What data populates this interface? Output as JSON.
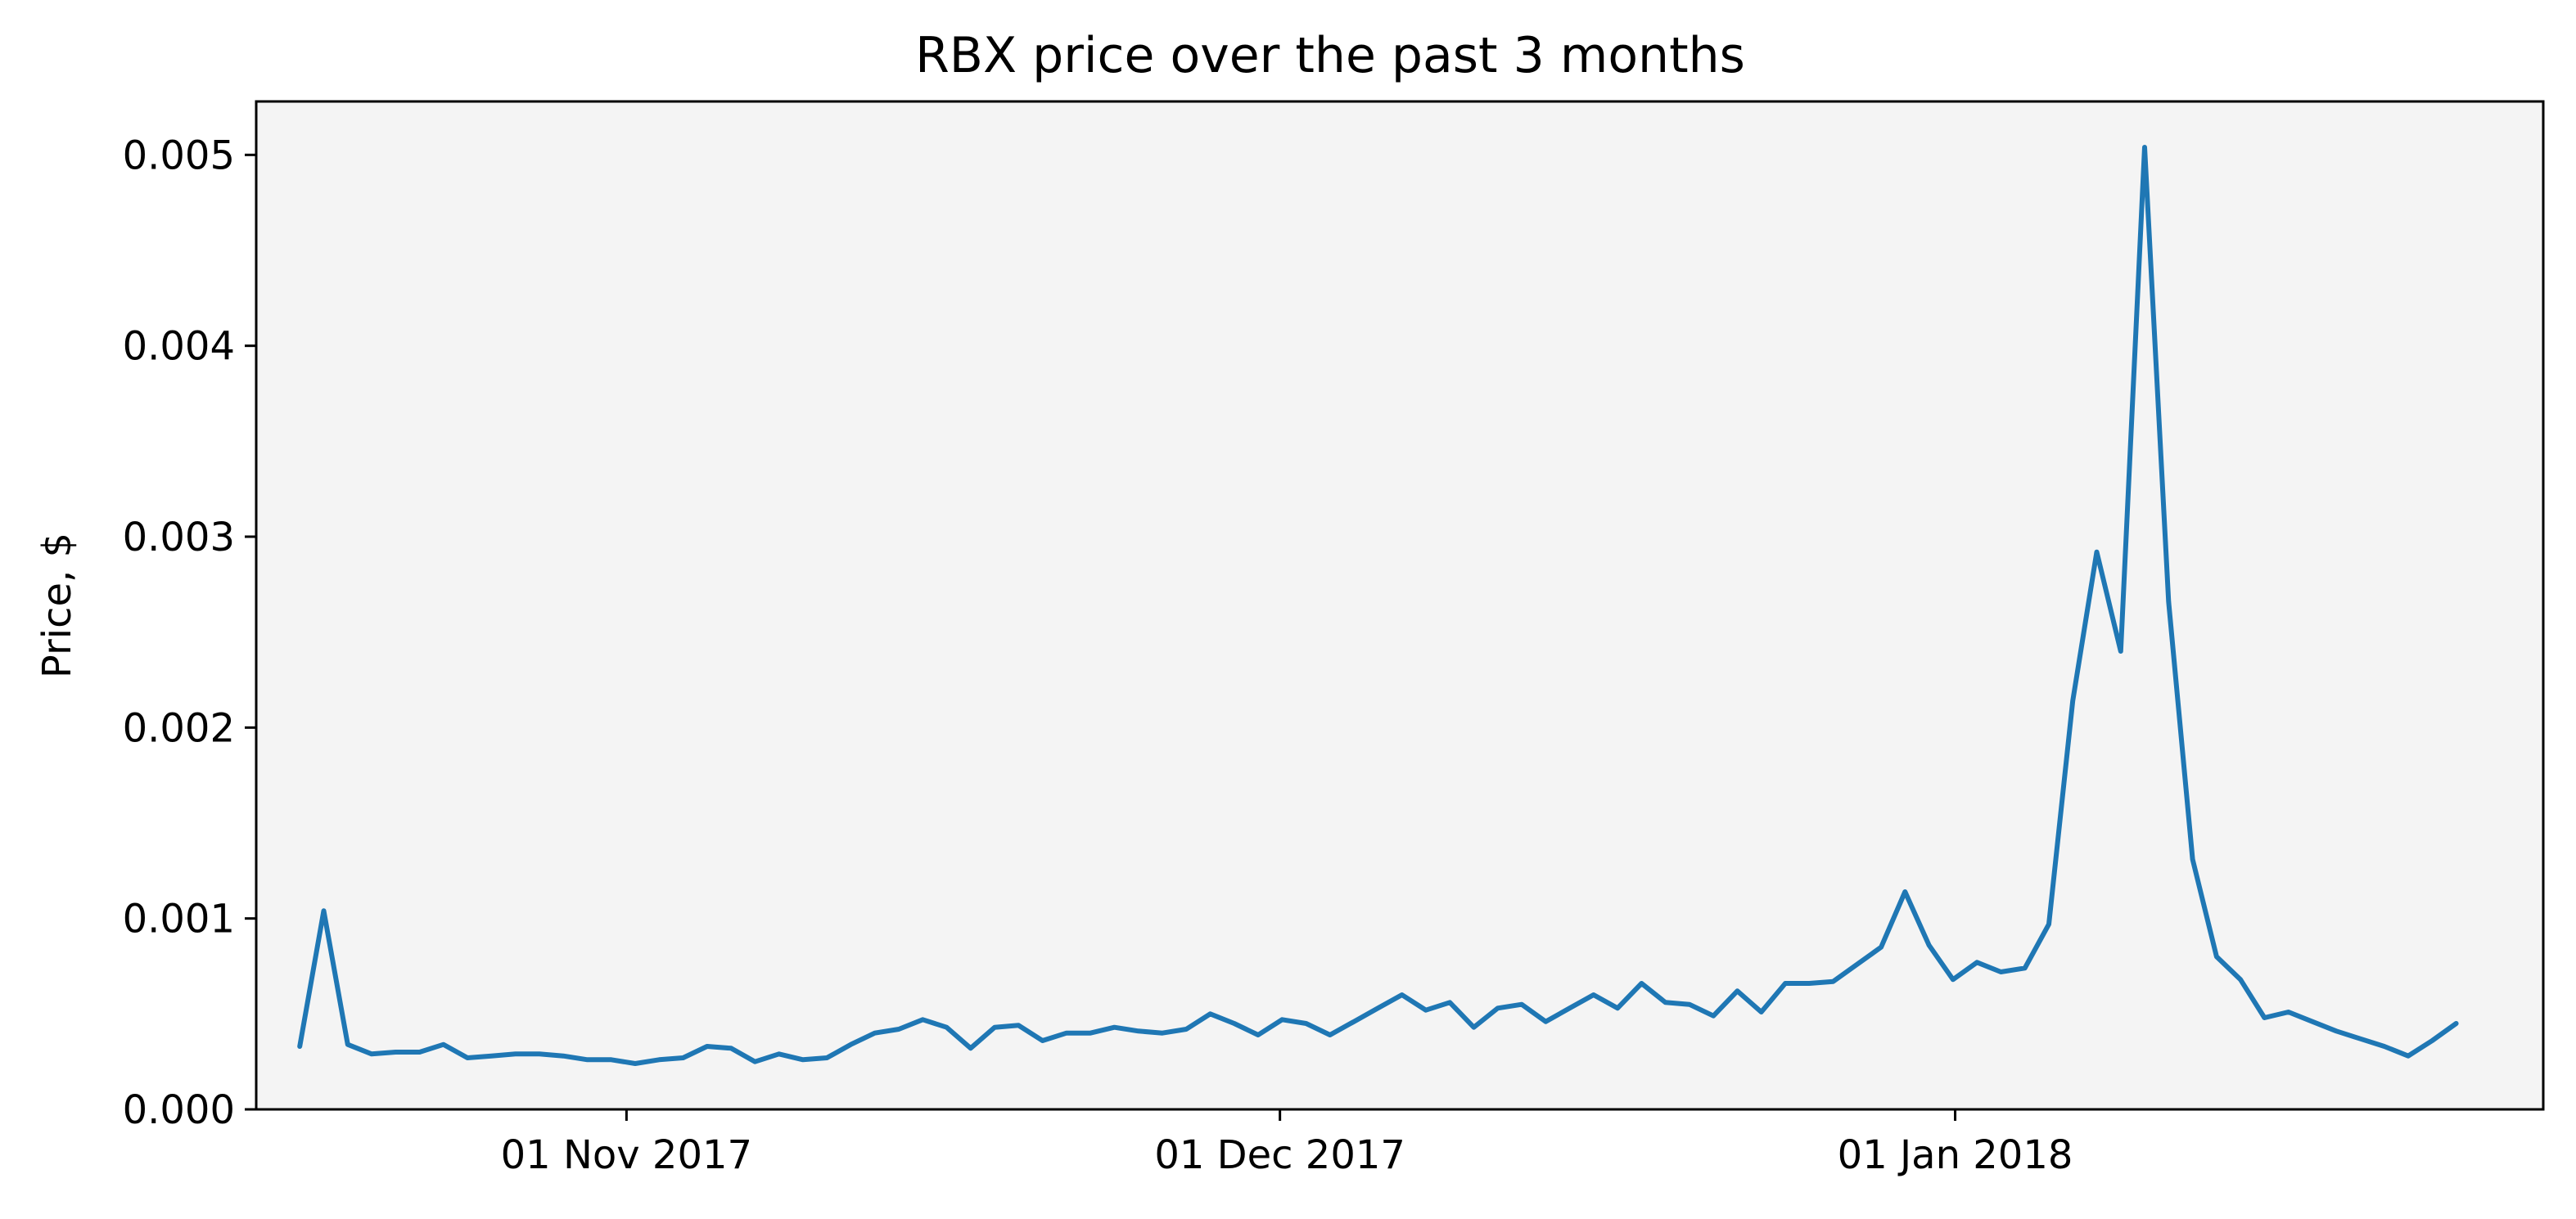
{
  "chart_data": {
    "type": "line",
    "title": "RBX price over the past 3 months",
    "xlabel": "",
    "ylabel": "Price, $",
    "x_date_start": "2017-10-17",
    "x_date_end": "2018-01-24",
    "xlim": [
      "2017-10-15",
      "2018-01-28"
    ],
    "ylim": [
      0,
      0.00528
    ],
    "yticks": [
      0,
      0.001,
      0.002,
      0.003,
      0.004,
      0.005
    ],
    "ytick_labels": [
      "0.000",
      "0.001",
      "0.002",
      "0.003",
      "0.004",
      "0.005"
    ],
    "xticks": [
      "2017-11-01",
      "2017-12-01",
      "2018-01-01"
    ],
    "xtick_labels": [
      "01 Nov 2017",
      "01 Dec 2017",
      "01 Jan 2018"
    ],
    "plot_background": "#f4f4f4",
    "line_color": "#1f77b4",
    "grid": false,
    "series": [
      {
        "name": "",
        "values": [
          0.00033,
          0.00104,
          0.00034,
          0.00029,
          0.0003,
          0.0003,
          0.00034,
          0.00027,
          0.00028,
          0.00029,
          0.00029,
          0.00028,
          0.00026,
          0.00026,
          0.00024,
          0.00026,
          0.00027,
          0.00033,
          0.00032,
          0.00025,
          0.00029,
          0.00026,
          0.00027,
          0.00034,
          0.0004,
          0.00042,
          0.00047,
          0.00043,
          0.00032,
          0.00043,
          0.00044,
          0.00036,
          0.0004,
          0.0004,
          0.00043,
          0.00041,
          0.0004,
          0.00042,
          0.0005,
          0.00045,
          0.00039,
          0.00047,
          0.00045,
          0.00039,
          0.00046,
          0.00053,
          0.0006,
          0.00052,
          0.00056,
          0.00043,
          0.00053,
          0.00055,
          0.00046,
          0.00053,
          0.0006,
          0.00053,
          0.00066,
          0.00056,
          0.00055,
          0.00049,
          0.00062,
          0.00051,
          0.00066,
          0.00066,
          0.00067,
          0.00076,
          0.00085,
          0.00114,
          0.00086,
          0.00068,
          0.00077,
          0.00072,
          0.00074,
          0.00097,
          0.00214,
          0.00292,
          0.0024,
          0.00504,
          0.00266,
          0.00131,
          0.0008,
          0.00068,
          0.00048,
          0.00051,
          0.00046,
          0.00041,
          0.00037,
          0.00033,
          0.00028,
          0.00036,
          0.00045
        ]
      }
    ]
  }
}
